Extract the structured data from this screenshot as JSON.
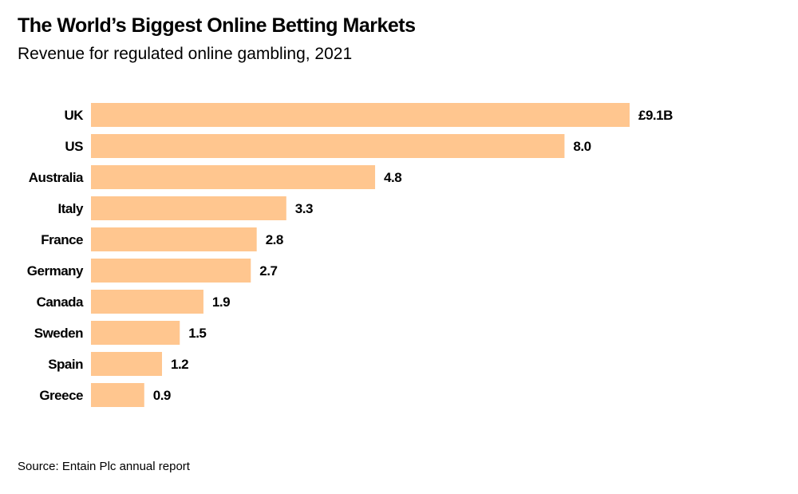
{
  "chart_data": {
    "type": "bar",
    "orientation": "horizontal",
    "title": "The World’s Biggest Online Betting Markets",
    "subtitle": "Revenue for regulated online gambling, 2021",
    "categories": [
      "UK",
      "US",
      "Australia",
      "Italy",
      "France",
      "Germany",
      "Canada",
      "Sweden",
      "Spain",
      "Greece"
    ],
    "values": [
      9.1,
      8.0,
      4.8,
      3.3,
      2.8,
      2.7,
      1.9,
      1.5,
      1.2,
      0.9
    ],
    "value_labels": [
      "£9.1B",
      "8.0",
      "4.8",
      "3.3",
      "2.8",
      "2.7",
      "1.9",
      "1.5",
      "1.2",
      "0.9"
    ],
    "unit": "£ billions",
    "xlabel": "",
    "ylabel": "",
    "xlim": [
      0,
      9.1
    ],
    "grid": false,
    "bar_color": "#FFC68F",
    "source": "Source: Entain Plc annual report"
  }
}
